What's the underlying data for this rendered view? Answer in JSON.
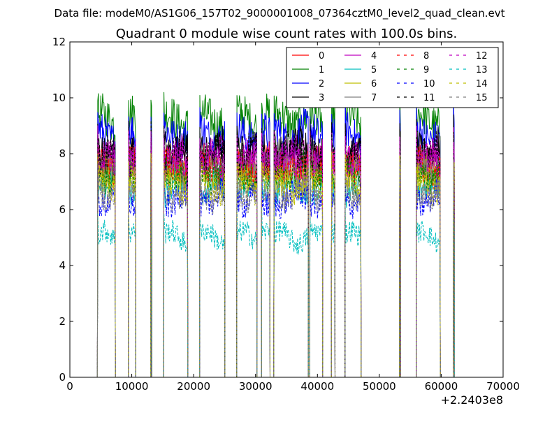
{
  "figure": {
    "suptitle": "Data file: modeM0/AS1G06_157T02_9000001008_07364cztM0_level2_quad_clean.evt",
    "title": "Quadrant 0 module wise count rates with 100.0s bins.",
    "x_offset_label": "+2.2403e8"
  },
  "chart_data": {
    "type": "line",
    "xlim": [
      0,
      70000
    ],
    "ylim": [
      0,
      12
    ],
    "x_ticks": [
      0,
      10000,
      20000,
      30000,
      40000,
      50000,
      60000,
      70000
    ],
    "y_ticks": [
      0,
      2,
      4,
      6,
      8,
      10,
      12
    ],
    "x_tick_labels": [
      "0",
      "10000",
      "20000",
      "30000",
      "40000",
      "50000",
      "60000",
      "70000"
    ],
    "y_tick_labels": [
      "0",
      "2",
      "4",
      "6",
      "8",
      "10",
      "12"
    ],
    "grid": false,
    "legend_position": "top-right",
    "legend_columns": 4,
    "segments": [
      [
        4500,
        7300
      ],
      [
        9500,
        10600
      ],
      [
        13100,
        13200
      ],
      [
        15200,
        19000
      ],
      [
        21000,
        25000
      ],
      [
        27000,
        30200
      ],
      [
        31000,
        32300
      ],
      [
        33000,
        38500
      ],
      [
        38800,
        40800
      ],
      [
        42300,
        42800
      ],
      [
        44500,
        47000
      ],
      [
        53300,
        53400
      ],
      [
        56000,
        59800
      ],
      [
        62000,
        62100
      ]
    ],
    "series": [
      {
        "name": "0",
        "color": "#ff0000",
        "style": "solid",
        "level": 7.6
      },
      {
        "name": "1",
        "color": "#008000",
        "style": "solid",
        "level": 9.2
      },
      {
        "name": "2",
        "color": "#0000ff",
        "style": "solid",
        "level": 8.7
      },
      {
        "name": "3",
        "color": "#000000",
        "style": "solid",
        "level": 8.2
      },
      {
        "name": "4",
        "color": "#bf00bf",
        "style": "solid",
        "level": 7.9
      },
      {
        "name": "5",
        "color": "#00bfbf",
        "style": "solid",
        "level": 6.8
      },
      {
        "name": "6",
        "color": "#bfbf00",
        "style": "solid",
        "level": 7.2
      },
      {
        "name": "7",
        "color": "#808080",
        "style": "solid",
        "level": 7.4
      },
      {
        "name": "8",
        "color": "#ff0000",
        "style": "dashed",
        "level": 7.5
      },
      {
        "name": "9",
        "color": "#008000",
        "style": "dashed",
        "level": 7.3
      },
      {
        "name": "10",
        "color": "#0000ff",
        "style": "dashed",
        "level": 6.4
      },
      {
        "name": "11",
        "color": "#000000",
        "style": "dashed",
        "level": 8.0
      },
      {
        "name": "12",
        "color": "#bf00bf",
        "style": "dashed",
        "level": 7.7
      },
      {
        "name": "13",
        "color": "#00bfbf",
        "style": "dashed",
        "level": 5.0
      },
      {
        "name": "14",
        "color": "#bfbf00",
        "style": "dashed",
        "level": 6.9
      },
      {
        "name": "15",
        "color": "#808080",
        "style": "dashed",
        "level": 6.6
      }
    ]
  }
}
